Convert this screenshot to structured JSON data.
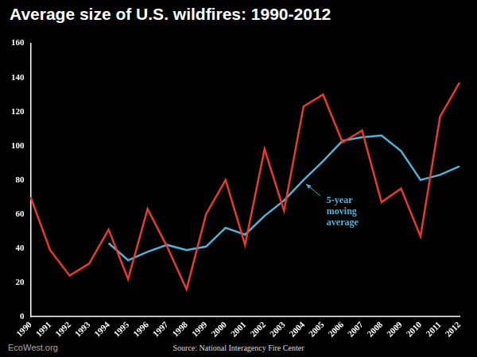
{
  "chart_data": {
    "type": "line",
    "title": "Average size of U.S. wildfires: 1990-2012",
    "categories": [
      "1990",
      "1991",
      "1992",
      "1993",
      "1994",
      "1995",
      "1996",
      "1997",
      "1998",
      "1999",
      "2000",
      "2001",
      "2002",
      "2003",
      "2004",
      "2005",
      "2006",
      "2007",
      "2008",
      "2009",
      "2010",
      "2011",
      "2012"
    ],
    "series": [
      {
        "color": "#e8392b",
        "values": [
          70,
          39,
          24,
          31,
          51,
          22,
          63,
          41,
          16,
          60,
          80,
          42,
          98,
          62,
          123,
          130,
          102,
          109,
          67,
          75,
          47,
          117,
          137
        ]
      },
      {
        "name": "5-year moving average",
        "color": "#4fb3d9",
        "values": [
          null,
          null,
          null,
          null,
          43,
          33,
          38,
          42,
          39,
          41,
          52,
          48,
          59,
          68,
          80,
          91,
          103,
          105,
          106,
          97,
          80,
          83,
          88
        ]
      }
    ],
    "ylim": [
      0,
      160
    ],
    "yticks": [
      0,
      20,
      40,
      60,
      80,
      100,
      120,
      140,
      160
    ],
    "grid": false,
    "annotations": [
      {
        "text": "5-year moving average",
        "x": "2004",
        "series": "5-year moving average"
      }
    ],
    "source": "Source: National Interagency Fire Center",
    "credit": "EcoWest.org"
  }
}
